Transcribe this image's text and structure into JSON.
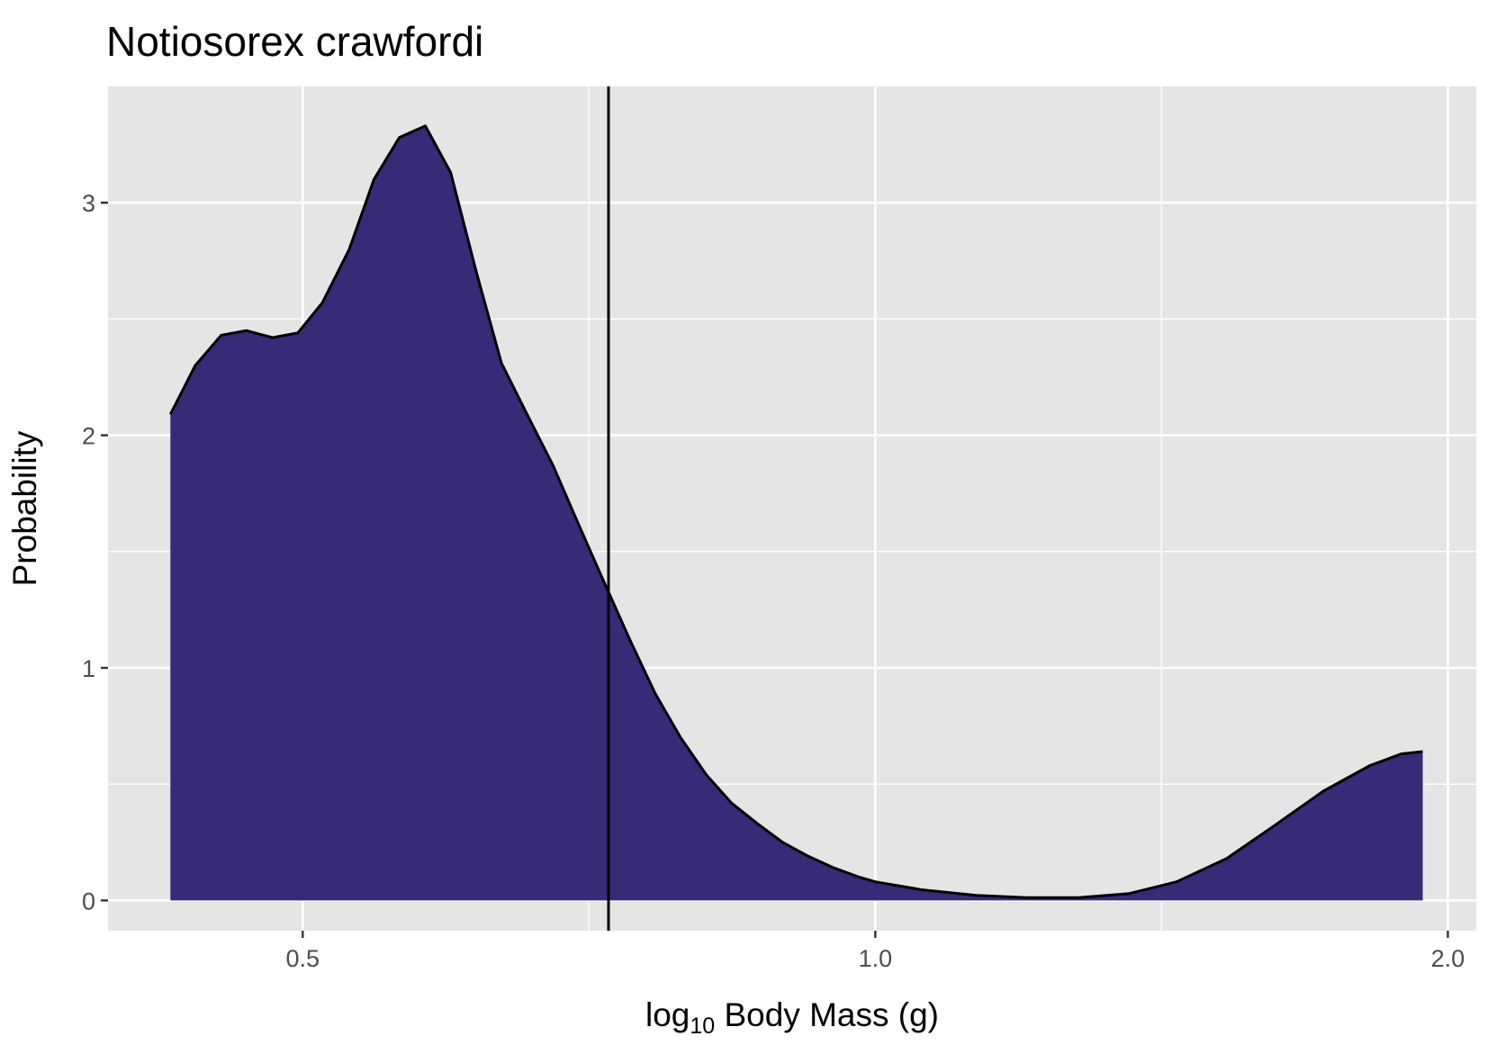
{
  "chart_data": {
    "type": "area",
    "title": "Notiosorex crawfordi",
    "xlabel": {
      "prefix": "log",
      "subscript": "10",
      "suffix": " Body Mass (g)"
    },
    "ylabel": "Probability",
    "x_scale": "log10",
    "xlim": [
      0.395,
      2.07
    ],
    "ylim": [
      -0.13,
      3.5
    ],
    "x_ticks": [
      {
        "value": 0.5,
        "label": "0.5"
      },
      {
        "value": 1.0,
        "label": "1.0"
      },
      {
        "value": 2.0,
        "label": "2.0"
      }
    ],
    "x_minor_ticks": [
      0.707,
      1.414
    ],
    "y_ticks": [
      {
        "value": 0,
        "label": "0"
      },
      {
        "value": 1,
        "label": "1"
      },
      {
        "value": 2,
        "label": "2"
      },
      {
        "value": 3,
        "label": "3"
      }
    ],
    "y_minor_ticks": [
      0.5,
      1.5,
      2.5
    ],
    "grid": true,
    "reference_line": {
      "x": 0.724
    },
    "colors": {
      "fill": "#372a77",
      "stroke": "#000000",
      "panel": "#e5e5e5",
      "grid": "#ffffff"
    },
    "series": [
      {
        "points": [
          [
            0.426,
            2.09
          ],
          [
            0.439,
            2.3
          ],
          [
            0.453,
            2.43
          ],
          [
            0.467,
            2.45
          ],
          [
            0.482,
            2.42
          ],
          [
            0.497,
            2.44
          ],
          [
            0.512,
            2.57
          ],
          [
            0.529,
            2.8
          ],
          [
            0.545,
            3.1
          ],
          [
            0.562,
            3.28
          ],
          [
            0.58,
            3.33
          ],
          [
            0.598,
            3.13
          ],
          [
            0.617,
            2.7
          ],
          [
            0.636,
            2.31
          ],
          [
            0.656,
            2.09
          ],
          [
            0.677,
            1.87
          ],
          [
            0.698,
            1.62
          ],
          [
            0.72,
            1.37
          ],
          [
            0.743,
            1.12
          ],
          [
            0.766,
            0.89
          ],
          [
            0.79,
            0.7
          ],
          [
            0.815,
            0.54
          ],
          [
            0.84,
            0.42
          ],
          [
            0.867,
            0.33
          ],
          [
            0.894,
            0.25
          ],
          [
            0.922,
            0.19
          ],
          [
            0.951,
            0.14
          ],
          [
            0.981,
            0.1
          ],
          [
            1.0,
            0.08
          ],
          [
            1.06,
            0.045
          ],
          [
            1.13,
            0.022
          ],
          [
            1.2,
            0.012
          ],
          [
            1.28,
            0.012
          ],
          [
            1.36,
            0.03
          ],
          [
            1.44,
            0.08
          ],
          [
            1.53,
            0.18
          ],
          [
            1.62,
            0.32
          ],
          [
            1.72,
            0.47
          ],
          [
            1.82,
            0.58
          ],
          [
            1.89,
            0.63
          ],
          [
            1.94,
            0.64
          ]
        ]
      }
    ]
  }
}
